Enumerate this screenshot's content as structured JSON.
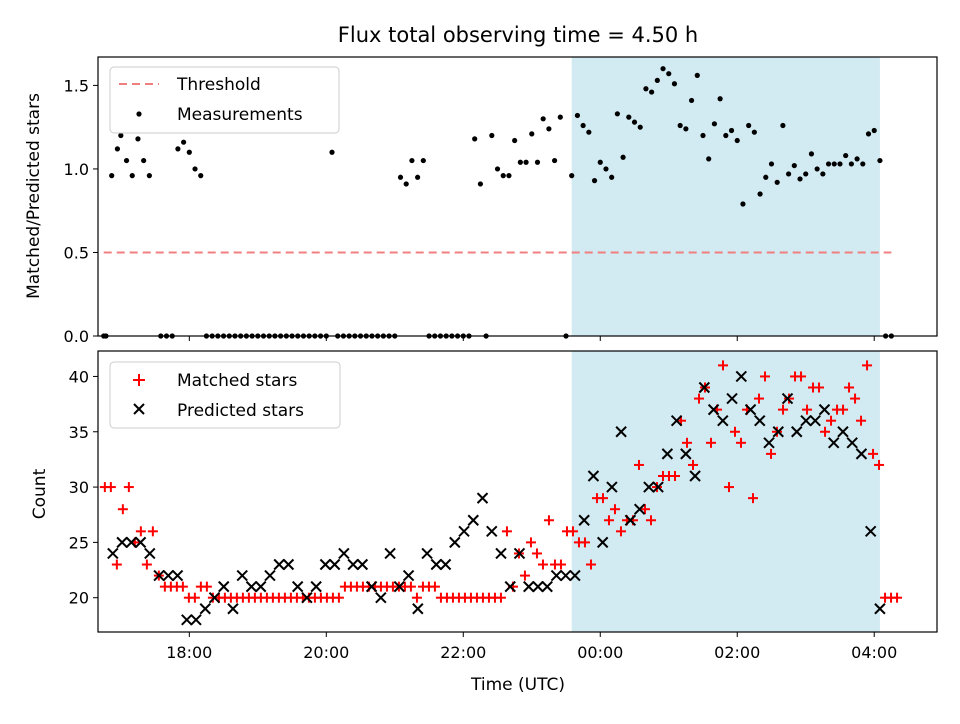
{
  "figure": {
    "title": "Flux total observing time = 4.50 h",
    "xlabel": "Time (UTC)",
    "x_tick_labels": [
      "18:00",
      "20:00",
      "22:00",
      "00:00",
      "02:00",
      "04:00"
    ],
    "shade_color": "#add8e6",
    "threshold_color": "#f08080",
    "marker_red": "#ff0000",
    "marker_black": "#000000"
  },
  "chart_data": [
    {
      "type": "scatter",
      "title": "Flux total observing time = 4.50 h",
      "xlabel": "",
      "ylabel": "Matched/Predicted stars",
      "x_unit": "hours (UTC clock, values past 24 = next day)",
      "xlim": [
        "16:40",
        "04:55"
      ],
      "ylim": [
        0,
        1.67
      ],
      "y_tick_labels": [
        "0.0",
        "0.5",
        "1.0",
        "1.5"
      ],
      "grid": false,
      "legend_position": "upper left",
      "legend": [
        "Threshold",
        "Measurements"
      ],
      "shaded_region": {
        "start": "23:35",
        "end": "04:05"
      },
      "threshold": {
        "name": "Threshold",
        "y": 0.5,
        "x_start": "16:45",
        "x_end": "04:15",
        "style": "dashed"
      },
      "measurements": {
        "name": "Measurements",
        "points": [
          [
            "16:45",
            0
          ],
          [
            "16:47",
            0
          ],
          [
            "16:52",
            0.96
          ],
          [
            "16:57",
            1.12
          ],
          [
            "17:00",
            1.2
          ],
          [
            "17:05",
            1.05
          ],
          [
            "17:10",
            0.96
          ],
          [
            "17:15",
            1.18
          ],
          [
            "17:20",
            1.05
          ],
          [
            "17:25",
            0.96
          ],
          [
            "17:35",
            0
          ],
          [
            "17:40",
            0
          ],
          [
            "17:45",
            0
          ],
          [
            "17:50",
            1.12
          ],
          [
            "17:55",
            1.16
          ],
          [
            "18:00",
            1.1
          ],
          [
            "18:05",
            1.0
          ],
          [
            "18:10",
            0.96
          ],
          [
            "18:15",
            0
          ],
          [
            "18:20",
            0
          ],
          [
            "18:25",
            0
          ],
          [
            "18:30",
            0
          ],
          [
            "18:35",
            0
          ],
          [
            "18:40",
            0
          ],
          [
            "18:45",
            0
          ],
          [
            "18:50",
            0
          ],
          [
            "18:55",
            0
          ],
          [
            "19:00",
            0
          ],
          [
            "19:05",
            0
          ],
          [
            "19:10",
            0
          ],
          [
            "19:15",
            0
          ],
          [
            "19:20",
            0
          ],
          [
            "19:25",
            0
          ],
          [
            "19:30",
            0
          ],
          [
            "19:35",
            0
          ],
          [
            "19:40",
            0
          ],
          [
            "19:45",
            0
          ],
          [
            "19:50",
            0
          ],
          [
            "19:55",
            0
          ],
          [
            "20:00",
            0
          ],
          [
            "20:05",
            1.1
          ],
          [
            "20:10",
            0
          ],
          [
            "20:15",
            0
          ],
          [
            "20:20",
            0
          ],
          [
            "20:25",
            0
          ],
          [
            "20:30",
            0
          ],
          [
            "20:35",
            0
          ],
          [
            "20:40",
            0
          ],
          [
            "20:45",
            0
          ],
          [
            "20:50",
            0
          ],
          [
            "20:55",
            0
          ],
          [
            "21:00",
            0
          ],
          [
            "21:05",
            0.95
          ],
          [
            "21:10",
            0.91
          ],
          [
            "21:15",
            1.05
          ],
          [
            "21:20",
            0.95
          ],
          [
            "21:25",
            1.05
          ],
          [
            "21:30",
            0
          ],
          [
            "21:35",
            0
          ],
          [
            "21:40",
            0
          ],
          [
            "21:45",
            0
          ],
          [
            "21:50",
            0
          ],
          [
            "21:55",
            0
          ],
          [
            "22:00",
            0
          ],
          [
            "22:05",
            0
          ],
          [
            "22:10",
            1.18
          ],
          [
            "22:15",
            0.91
          ],
          [
            "22:20",
            0
          ],
          [
            "22:25",
            1.2
          ],
          [
            "22:30",
            1.0
          ],
          [
            "22:35",
            0.96
          ],
          [
            "22:40",
            0.96
          ],
          [
            "22:45",
            1.17
          ],
          [
            "22:50",
            1.04
          ],
          [
            "22:55",
            1.04
          ],
          [
            "23:00",
            1.21
          ],
          [
            "23:05",
            1.04
          ],
          [
            "23:10",
            1.3
          ],
          [
            "23:15",
            1.24
          ],
          [
            "23:20",
            1.05
          ],
          [
            "23:25",
            1.31
          ],
          [
            "23:30",
            0
          ],
          [
            "23:35",
            0.96
          ],
          [
            "23:40",
            1.32
          ],
          [
            "23:45",
            1.26
          ],
          [
            "23:50",
            1.22
          ],
          [
            "23:55",
            0.93
          ],
          [
            "24:00",
            1.04
          ],
          [
            "24:05",
            1.0
          ],
          [
            "24:10",
            0.95
          ],
          [
            "24:15",
            1.33
          ],
          [
            "24:20",
            1.07
          ],
          [
            "24:25",
            1.31
          ],
          [
            "24:30",
            1.28
          ],
          [
            "24:35",
            1.25
          ],
          [
            "24:40",
            1.48
          ],
          [
            "24:45",
            1.46
          ],
          [
            "24:50",
            1.53
          ],
          [
            "24:55",
            1.6
          ],
          [
            "25:00",
            1.57
          ],
          [
            "25:05",
            1.51
          ],
          [
            "25:10",
            1.26
          ],
          [
            "25:15",
            1.24
          ],
          [
            "25:20",
            1.41
          ],
          [
            "25:25",
            1.56
          ],
          [
            "25:30",
            1.2
          ],
          [
            "25:35",
            1.06
          ],
          [
            "25:40",
            1.27
          ],
          [
            "25:45",
            1.42
          ],
          [
            "25:50",
            1.2
          ],
          [
            "25:55",
            1.23
          ],
          [
            "26:00",
            1.17
          ],
          [
            "26:05",
            0.79
          ],
          [
            "26:10",
            1.26
          ],
          [
            "26:15",
            1.22
          ],
          [
            "26:20",
            0.85
          ],
          [
            "26:25",
            0.95
          ],
          [
            "26:30",
            1.03
          ],
          [
            "26:35",
            0.92
          ],
          [
            "26:40",
            1.26
          ],
          [
            "26:45",
            0.97
          ],
          [
            "26:50",
            1.02
          ],
          [
            "26:55",
            0.94
          ],
          [
            "27:00",
            0.97
          ],
          [
            "27:05",
            1.09
          ],
          [
            "27:10",
            1.0
          ],
          [
            "27:15",
            0.97
          ],
          [
            "27:20",
            1.03
          ],
          [
            "27:25",
            1.03
          ],
          [
            "27:30",
            1.03
          ],
          [
            "27:35",
            1.08
          ],
          [
            "27:40",
            1.03
          ],
          [
            "27:45",
            1.06
          ],
          [
            "27:50",
            1.03
          ],
          [
            "27:55",
            1.21
          ],
          [
            "28:00",
            1.23
          ],
          [
            "28:05",
            1.05
          ],
          [
            "28:10",
            0
          ],
          [
            "28:15",
            0
          ]
        ]
      }
    },
    {
      "type": "scatter",
      "title": "",
      "xlabel": "Time (UTC)",
      "ylabel": "Count",
      "xlim": [
        "16:40",
        "04:55"
      ],
      "ylim": [
        16.9,
        42.3
      ],
      "y_tick_labels": [
        "20",
        "25",
        "30",
        "35",
        "40"
      ],
      "grid": false,
      "legend_position": "upper left",
      "legend": [
        "Matched stars",
        "Predicted stars"
      ],
      "shaded_region": {
        "start": "23:35",
        "end": "04:05"
      },
      "series": [
        {
          "name": "Matched stars",
          "marker": "plus",
          "values": [
            [
              30,
              30,
              23,
              28,
              30,
              25,
              26,
              23,
              26,
              22,
              21,
              21,
              21,
              21,
              20,
              20,
              21,
              21,
              20,
              20,
              20,
              20,
              20,
              20,
              20,
              20,
              20,
              20,
              20,
              20,
              20,
              20,
              20,
              20,
              20,
              20,
              20,
              20,
              20,
              20,
              21,
              21,
              21,
              21,
              21,
              21,
              21,
              21,
              21,
              21,
              21,
              21,
              20,
              21,
              21,
              21,
              20,
              20,
              20,
              20,
              20,
              20,
              20,
              20,
              20,
              20,
              20,
              26,
              21,
              24,
              22,
              25,
              24,
              23,
              27,
              23,
              23,
              26,
              26,
              25,
              25,
              23,
              29,
              29,
              27,
              28,
              26,
              27,
              27,
              32,
              28,
              27,
              30,
              31,
              31,
              31,
              36,
              34,
              32,
              38,
              39,
              34,
              37,
              41,
              30,
              35,
              34,
              37,
              29,
              38,
              40,
              33,
              35,
              37,
              38,
              40,
              40,
              37,
              39,
              39,
              35,
              36,
              37,
              37,
              39,
              38,
              36,
              41,
              33,
              32,
              20,
              20,
              20
            ]
          ]
        },
        {
          "name": "Predicted stars",
          "marker": "x",
          "values": [
            [
              24,
              25,
              25,
              25,
              24,
              22,
              22,
              22,
              18,
              18,
              19,
              20,
              21,
              19,
              22,
              21,
              21,
              22,
              23,
              23,
              21,
              20,
              21,
              23,
              23,
              24,
              23,
              23,
              21,
              20,
              24,
              21,
              22,
              19,
              24,
              23,
              23,
              25,
              26,
              27,
              29,
              26,
              24,
              21,
              24,
              21,
              21,
              21,
              22,
              22,
              22,
              27,
              31,
              25,
              30,
              35,
              27,
              28,
              30,
              30,
              33,
              36,
              33,
              31,
              39,
              37,
              36,
              38,
              40,
              37,
              36,
              34,
              35,
              38,
              35,
              36,
              36,
              37,
              34,
              35,
              34,
              33,
              26,
              19
            ]
          ]
        }
      ]
    }
  ]
}
